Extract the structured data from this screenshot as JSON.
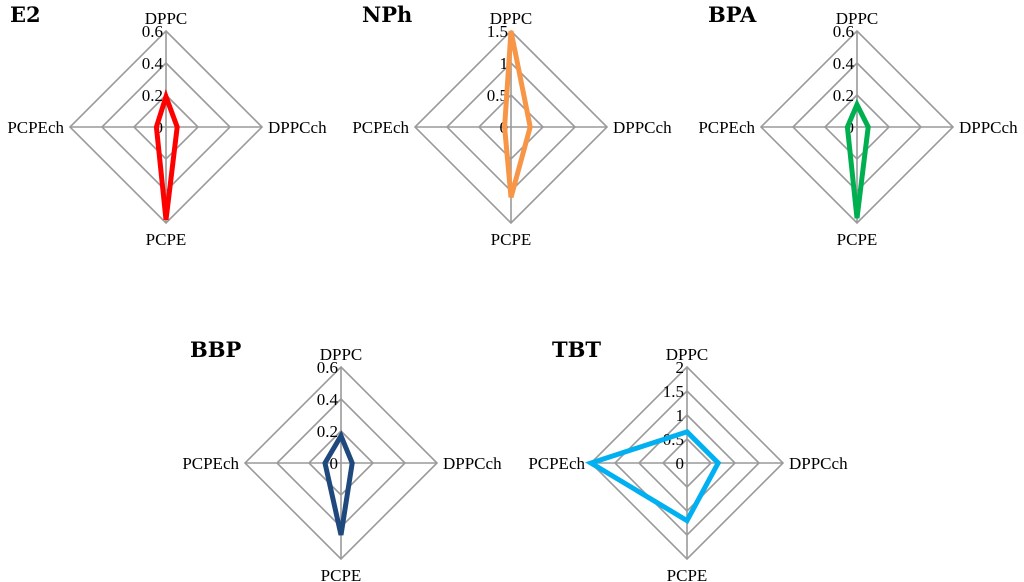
{
  "chart_data": [
    {
      "type": "radar",
      "title": "E2",
      "axes": [
        "DPPC",
        "DPPCch",
        "PCPE",
        "PCPEch"
      ],
      "ticks": [
        "0",
        "0.2",
        "0.4",
        "0.6"
      ],
      "rmax": 0.6,
      "series": [
        {
          "values": [
            0.19,
            0.07,
            0.58,
            0.06
          ]
        }
      ],
      "color": "#ff0000"
    },
    {
      "type": "radar",
      "title": "NPh",
      "axes": [
        "DPPC",
        "DPPCch",
        "PCPE",
        "PCPEch"
      ],
      "ticks": [
        "0",
        "0.5",
        "1",
        "1.5"
      ],
      "rmax": 1.5,
      "series": [
        {
          "values": [
            1.5,
            0.3,
            1.1,
            0.1
          ]
        }
      ],
      "color": "#f79646"
    },
    {
      "type": "radar",
      "title": "BPA",
      "axes": [
        "DPPC",
        "DPPCch",
        "PCPE",
        "PCPEch"
      ],
      "ticks": [
        "0",
        "0.2",
        "0.4",
        "0.6"
      ],
      "rmax": 0.6,
      "series": [
        {
          "values": [
            0.14,
            0.07,
            0.57,
            0.06
          ]
        }
      ],
      "color": "#00b050"
    },
    {
      "type": "radar",
      "title": "BBP",
      "axes": [
        "DPPC",
        "DPPCch",
        "PCPE",
        "PCPEch"
      ],
      "ticks": [
        "0",
        "0.2",
        "0.4",
        "0.6"
      ],
      "rmax": 0.6,
      "series": [
        {
          "values": [
            0.17,
            0.07,
            0.45,
            0.1
          ]
        }
      ],
      "color": "#1f497d"
    },
    {
      "type": "radar",
      "title": "TBT",
      "axes": [
        "DPPC",
        "DPPCch",
        "PCPE",
        "PCPEch"
      ],
      "ticks": [
        "0",
        "0.5",
        "1",
        "1.5",
        "2"
      ],
      "rmax": 2,
      "series": [
        {
          "values": [
            0.65,
            0.65,
            1.2,
            2.0
          ]
        }
      ],
      "color": "#00b0f0"
    }
  ]
}
